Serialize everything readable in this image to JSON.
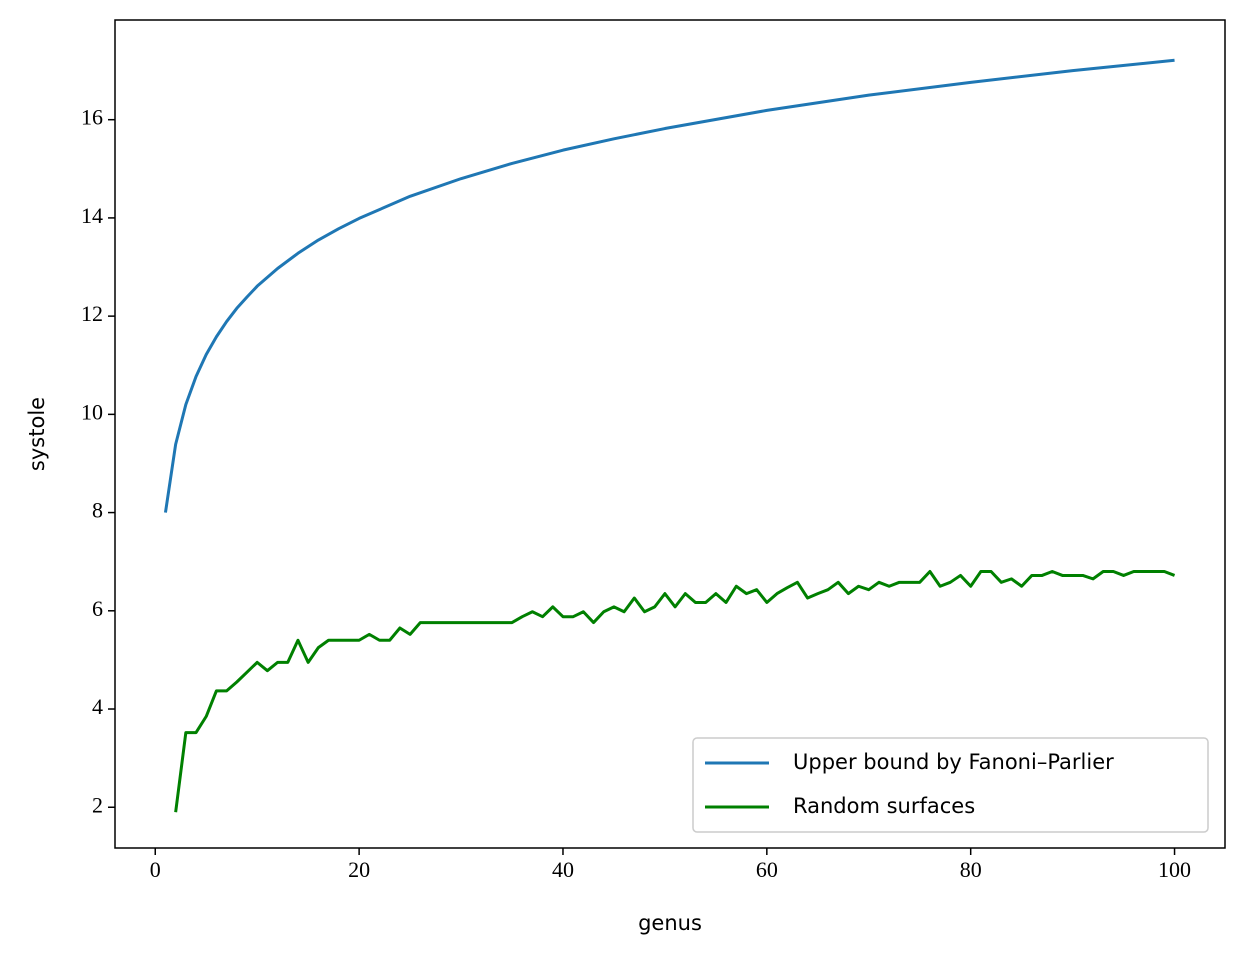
{
  "chart_data": {
    "type": "line",
    "xlabel": "genus",
    "ylabel": "systole",
    "xlim": [
      -3.95,
      104.95
    ],
    "ylim": [
      1.17,
      18.03
    ],
    "xticks": [
      0,
      20,
      40,
      60,
      80,
      100
    ],
    "yticks": [
      2,
      4,
      6,
      8,
      10,
      12,
      14,
      16
    ],
    "legend": "lower right",
    "series": [
      {
        "name": "Upper bound by Fanoni–Parlier",
        "color": "#1f77b4",
        "x": [
          1,
          2,
          3,
          4,
          5,
          6,
          7,
          8,
          9,
          10,
          12,
          14,
          16,
          18,
          20,
          25,
          30,
          35,
          40,
          45,
          50,
          60,
          70,
          80,
          90,
          100
        ],
        "values": [
          8.0,
          9.39,
          10.2,
          10.77,
          11.22,
          11.58,
          11.89,
          12.16,
          12.39,
          12.61,
          12.97,
          13.28,
          13.55,
          13.78,
          13.99,
          14.44,
          14.8,
          15.11,
          15.38,
          15.61,
          15.82,
          16.19,
          16.5,
          16.76,
          17.0,
          17.21
        ]
      },
      {
        "name": "Random surfaces",
        "color": "#008000",
        "x": [
          2,
          3,
          4,
          5,
          6,
          7,
          8,
          9,
          10,
          11,
          12,
          13,
          14,
          15,
          16,
          17,
          18,
          19,
          20,
          21,
          22,
          23,
          24,
          25,
          26,
          27,
          28,
          29,
          30,
          31,
          32,
          33,
          34,
          35,
          36,
          37,
          38,
          39,
          40,
          41,
          42,
          43,
          44,
          45,
          46,
          47,
          48,
          49,
          50,
          51,
          52,
          53,
          54,
          55,
          56,
          57,
          58,
          59,
          60,
          61,
          62,
          63,
          64,
          65,
          66,
          67,
          68,
          69,
          70,
          71,
          72,
          73,
          74,
          75,
          76,
          77,
          78,
          79,
          80,
          81,
          82,
          83,
          84,
          85,
          86,
          87,
          88,
          89,
          90,
          91,
          92,
          93,
          94,
          95,
          96,
          97,
          98,
          99,
          100
        ],
        "values": [
          1.9,
          3.52,
          3.52,
          3.85,
          4.37,
          4.37,
          4.55,
          4.75,
          4.95,
          4.78,
          4.95,
          4.95,
          5.4,
          4.95,
          5.25,
          5.4,
          5.4,
          5.4,
          5.4,
          5.52,
          5.4,
          5.4,
          5.65,
          5.52,
          5.76,
          5.76,
          5.76,
          5.76,
          5.76,
          5.76,
          5.76,
          5.76,
          5.76,
          5.76,
          5.88,
          5.98,
          5.88,
          6.08,
          5.88,
          5.88,
          5.98,
          5.76,
          5.98,
          6.08,
          5.98,
          6.26,
          5.98,
          6.08,
          6.35,
          6.08,
          6.35,
          6.17,
          6.17,
          6.35,
          6.17,
          6.5,
          6.35,
          6.43,
          6.17,
          6.35,
          6.47,
          6.58,
          6.26,
          6.35,
          6.43,
          6.58,
          6.35,
          6.5,
          6.43,
          6.58,
          6.5,
          6.58,
          6.58,
          6.58,
          6.8,
          6.5,
          6.58,
          6.72,
          6.5,
          6.8,
          6.8,
          6.58,
          6.65,
          6.5,
          6.72,
          6.72,
          6.8,
          6.72,
          6.72,
          6.72,
          6.65,
          6.8,
          6.8,
          6.72,
          6.8,
          6.8,
          6.8,
          6.8,
          6.72
        ]
      }
    ]
  }
}
